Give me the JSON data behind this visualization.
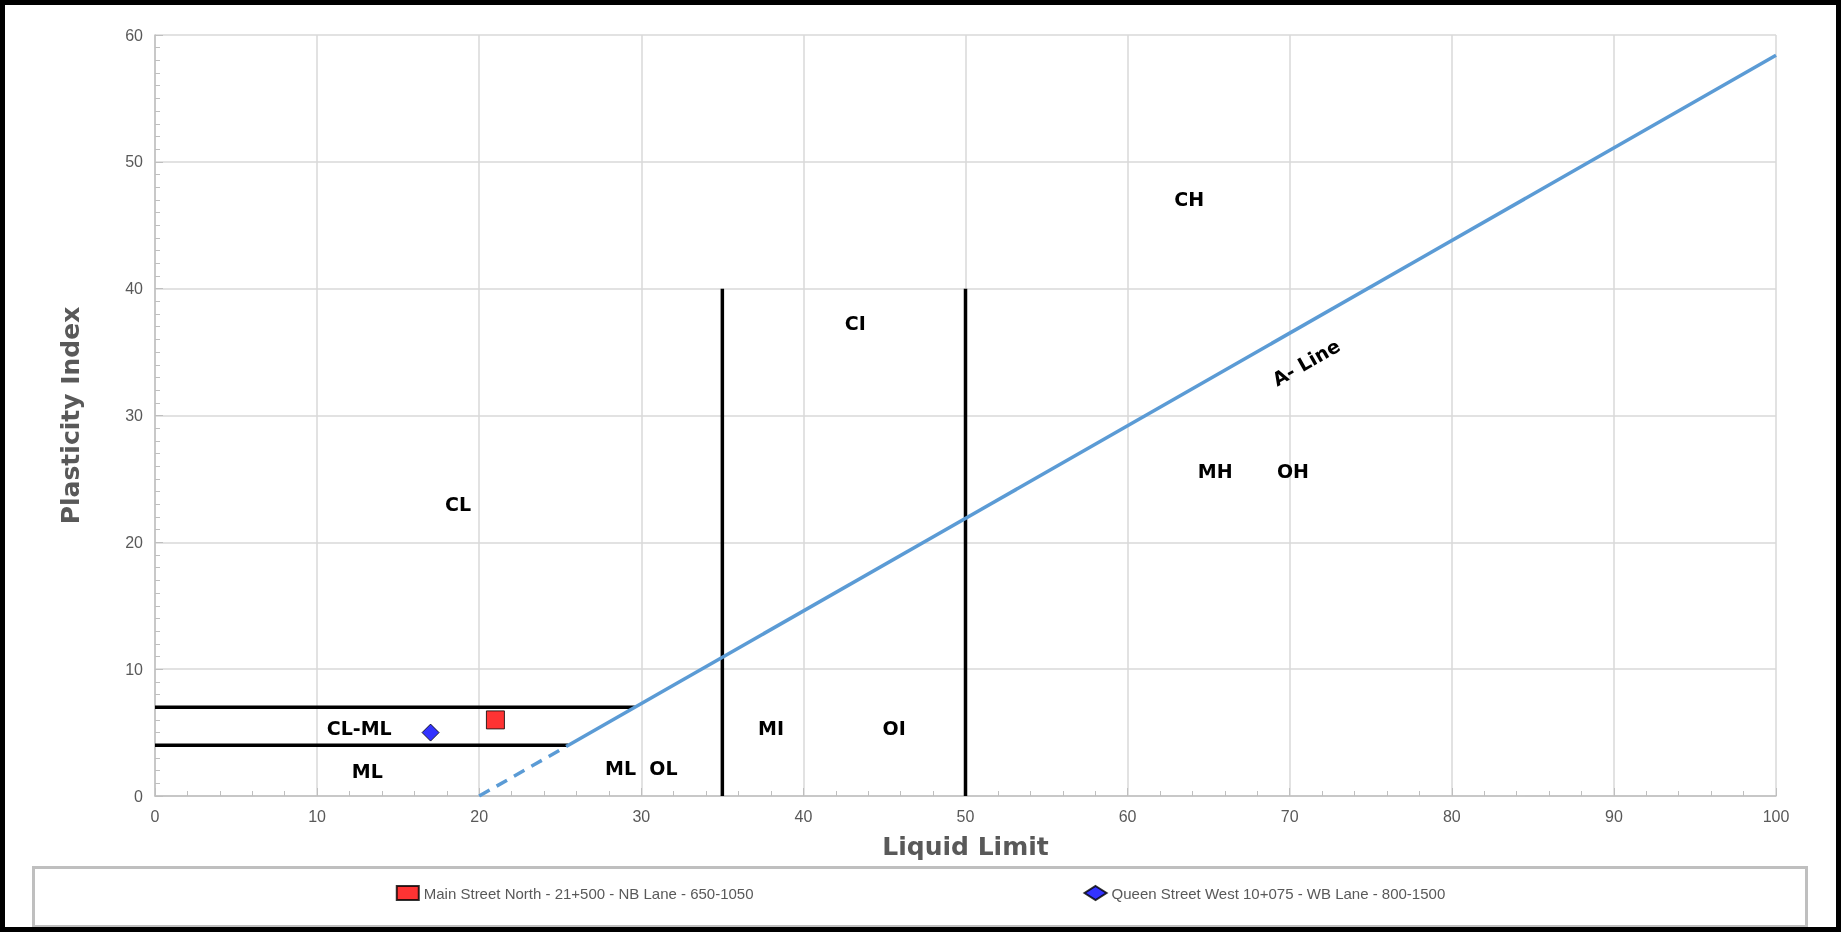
{
  "chart_data": {
    "type": "scatter",
    "xlabel": "Liquid Limit",
    "ylabel": "Plasticity Index",
    "xlim": [
      0,
      100
    ],
    "xticks": [
      0,
      10,
      20,
      30,
      40,
      50,
      60,
      70,
      80,
      90,
      100
    ],
    "ylim": [
      0,
      60
    ],
    "yticks": [
      0,
      10,
      20,
      30,
      40,
      50,
      60
    ],
    "grid": true,
    "legend": "bottom",
    "series": [
      {
        "type": "line",
        "color": "#000000",
        "x": [
          0,
          29.6
        ],
        "values": [
          7,
          7
        ],
        "line_style": "solid"
      },
      {
        "type": "line",
        "color": "#000000",
        "x": [
          0,
          25.5
        ],
        "values": [
          4,
          4
        ],
        "line_style": "solid"
      },
      {
        "type": "line",
        "color": "#000000",
        "x": [
          35,
          35
        ],
        "values": [
          0,
          40
        ],
        "line_style": "solid"
      },
      {
        "type": "line",
        "color": "#000000",
        "x": [
          50,
          50
        ],
        "values": [
          0,
          40
        ],
        "line_style": "solid"
      },
      {
        "type": "line",
        "color": "#5b9bd5",
        "x": [
          20,
          25.5
        ],
        "values": [
          0,
          4
        ],
        "line_style": "dashed"
      },
      {
        "type": "line",
        "color": "#5b9bd5",
        "x": [
          25.5,
          100
        ],
        "values": [
          4,
          58.4
        ],
        "line_style": "solid"
      },
      {
        "name": "Main Street North - 21+500 - NB Lane - 650-1050",
        "color": "#ff0000",
        "marker": "square",
        "x": [
          21
        ],
        "values": [
          6
        ]
      },
      {
        "name": "Queen Street West 10+075 - WB Lane - 800-1500",
        "color": "#0000ff",
        "marker": "diamond",
        "x": [
          17
        ],
        "values": [
          5
        ]
      }
    ],
    "annotations": [
      "CH",
      "CI",
      "CL",
      "CL-ML",
      "ML",
      "ML  OL",
      "MI",
      "OI",
      "MH",
      "OH",
      "A- Line"
    ]
  }
}
